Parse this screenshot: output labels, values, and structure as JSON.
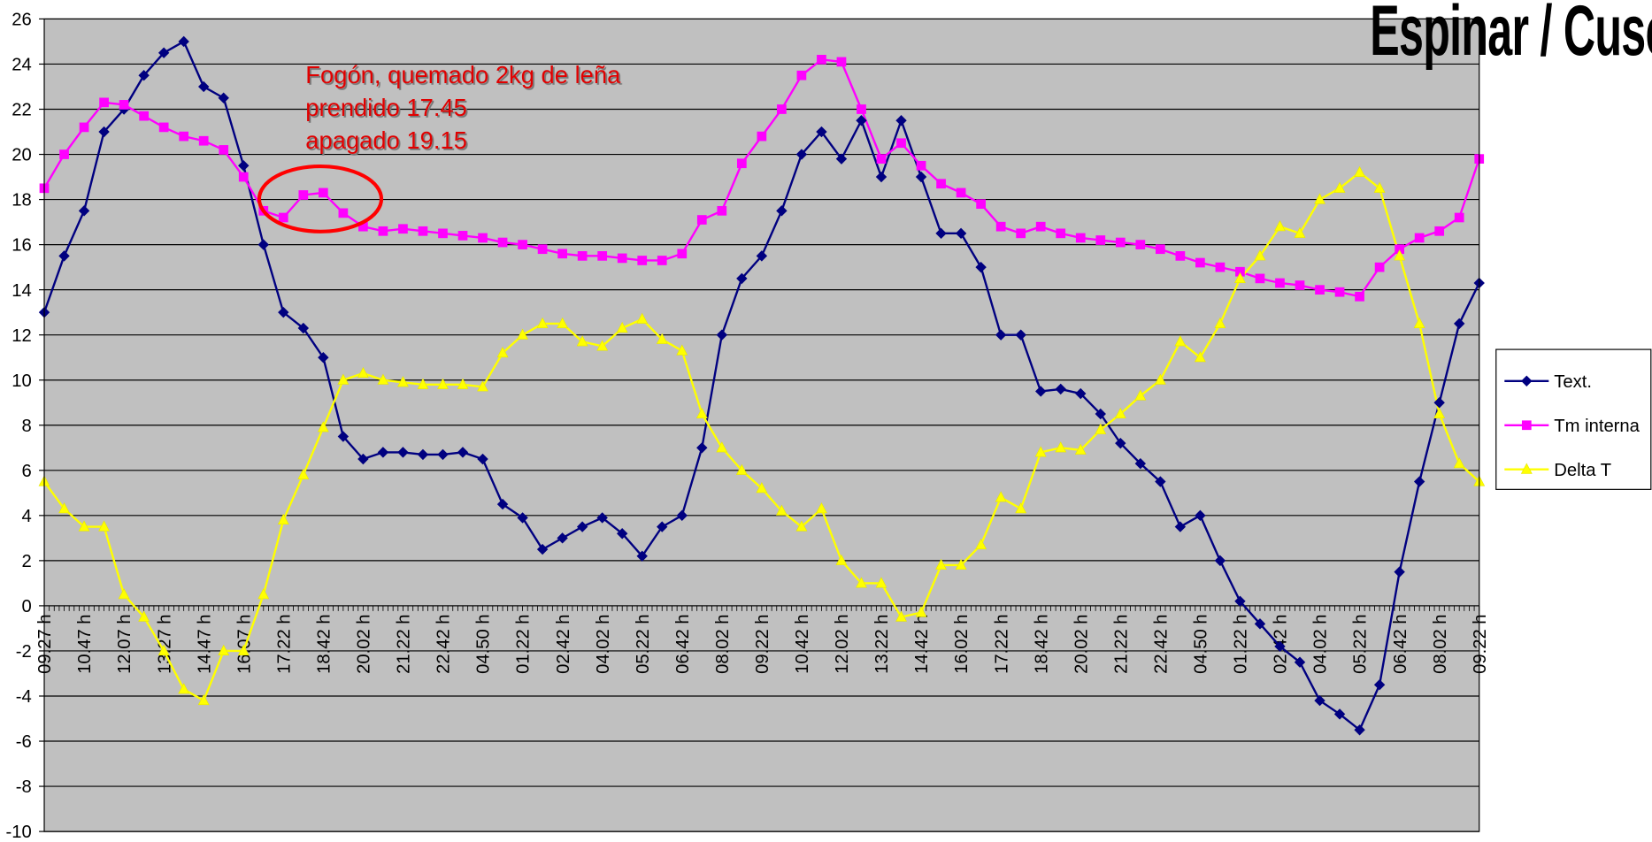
{
  "chart_data": {
    "type": "line",
    "title": "Espinar / Cusco",
    "annotations": [
      "Fogón, quemado 2kg de leña",
      "prendido 17.45",
      "apagado 19.15"
    ],
    "categories": [
      "09.27 h",
      null,
      "10.47 h",
      null,
      "12.07 h",
      null,
      "13.27 h",
      null,
      "14.47 h",
      null,
      "16.07 h",
      null,
      "17.22 h",
      null,
      "18.42 h",
      null,
      "20.02 h",
      null,
      "21.22 h",
      null,
      "22.42 h",
      null,
      "04.50 h",
      null,
      "01.22 h",
      null,
      "02.42 h",
      null,
      "04.02 h",
      null,
      "05.22 h",
      null,
      "06.42 h",
      null,
      "08.02 h",
      null,
      "09.22 h",
      null,
      "10.42 h",
      null,
      "12.02 h",
      null,
      "13.22 h",
      null,
      "14.42 h",
      null,
      "16.02 h",
      null,
      "17.22 h",
      null,
      "18.42 h",
      null,
      "20.02 h",
      null,
      "21.22 h",
      null,
      "22.42 h",
      null,
      "04.50 h",
      null,
      "01.22 h",
      null,
      "02.42 h",
      null,
      "04.02 h",
      null,
      "05.22 h",
      null,
      "06.42 h",
      null,
      "08.02 h",
      null,
      "09.22 h"
    ],
    "series": [
      {
        "name": "Text.",
        "color": "#000080",
        "marker": "diamond",
        "values": [
          13.0,
          15.5,
          17.5,
          21,
          22,
          23.5,
          24.5,
          25,
          23,
          22.5,
          19.5,
          16,
          13,
          12.3,
          11,
          7.5,
          6.5,
          6.8,
          6.8,
          6.7,
          6.7,
          6.8,
          6.5,
          4.5,
          3.9,
          2.5,
          3,
          3.5,
          3.9,
          3.2,
          2.2,
          3.5,
          4,
          7,
          12,
          14.5,
          15.5,
          17.5,
          20,
          21,
          19.8,
          21.5,
          19,
          21.5,
          19,
          16.5,
          16.5,
          15,
          12,
          12,
          9.5,
          9.6,
          9.4,
          8.5,
          7.2,
          6.3,
          5.5,
          3.5,
          4,
          2,
          0.2,
          -0.8,
          -1.8,
          -2.5,
          -4.2,
          -4.8,
          -5.5,
          -3.5,
          1.5,
          5.5,
          9,
          12.5,
          14.3
        ]
      },
      {
        "name": "Tm interna",
        "color": "#ff00ff",
        "marker": "square",
        "values": [
          18.5,
          20,
          21.2,
          22.3,
          22.2,
          21.7,
          21.2,
          20.8,
          20.6,
          20.2,
          19,
          17.5,
          17.2,
          18.2,
          18.3,
          17.4,
          16.8,
          16.6,
          16.7,
          16.6,
          16.5,
          16.4,
          16.3,
          16.1,
          16,
          15.8,
          15.6,
          15.5,
          15.5,
          15.4,
          15.3,
          15.3,
          15.6,
          17.1,
          17.5,
          19.6,
          20.8,
          22,
          23.5,
          24.2,
          24.1,
          22,
          19.8,
          20.5,
          19.5,
          18.7,
          18.3,
          17.8,
          16.8,
          16.5,
          16.8,
          16.5,
          16.3,
          16.2,
          16.1,
          16,
          15.8,
          15.5,
          15.2,
          15,
          14.8,
          14.5,
          14.3,
          14.2,
          14,
          13.9,
          13.7,
          15,
          15.8,
          16.3,
          16.6,
          17.2,
          19.8
        ]
      },
      {
        "name": "Delta T",
        "color": "#ffff00",
        "marker": "triangle",
        "values": [
          5.5,
          4.3,
          3.5,
          3.5,
          0.5,
          -0.5,
          -2,
          -3.7,
          -4.2,
          -2,
          -2,
          0.5,
          3.8,
          5.8,
          7.9,
          10,
          10.3,
          10,
          9.9,
          9.8,
          9.8,
          9.8,
          9.7,
          11.2,
          12,
          12.5,
          12.5,
          11.7,
          11.5,
          12.3,
          12.7,
          11.8,
          11.3,
          8.5,
          7,
          6,
          5.2,
          4.2,
          3.5,
          4.3,
          2,
          1,
          1,
          -0.5,
          -0.3,
          1.8,
          1.8,
          2.7,
          4.8,
          4.3,
          6.8,
          7,
          6.9,
          7.8,
          8.5,
          9.3,
          10,
          11.7,
          11,
          12.5,
          14.5,
          15.5,
          16.8,
          16.5,
          18,
          18.5,
          19.2,
          18.5,
          15.5,
          12.5,
          8.5,
          6.3,
          5.5
        ]
      }
    ],
    "ylim": [
      -10,
      26
    ],
    "yticks": [
      -10,
      -8,
      -6,
      -4,
      -2,
      0,
      2,
      4,
      6,
      8,
      10,
      12,
      14,
      16,
      18,
      20,
      22,
      24,
      26
    ],
    "grid": true,
    "legend": "right"
  }
}
